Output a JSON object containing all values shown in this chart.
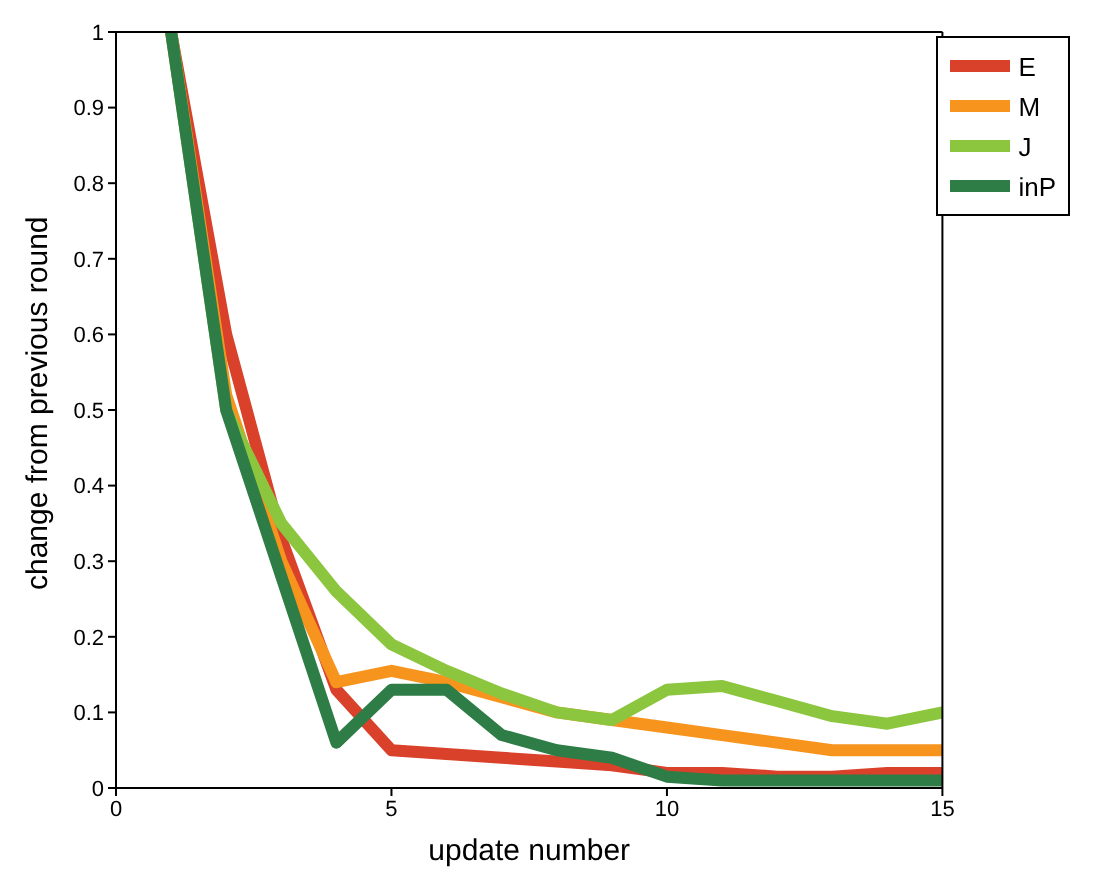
{
  "chart_data": {
    "type": "line",
    "xlabel": "update number",
    "ylabel": "change from previous round",
    "x": [
      1,
      2,
      3,
      4,
      5,
      6,
      7,
      8,
      9,
      10,
      11,
      12,
      13,
      14,
      15
    ],
    "series": [
      {
        "name": "E",
        "color": "#d9412b",
        "values": [
          1,
          0.6,
          0.33,
          0.13,
          0.05,
          0.045,
          0.04,
          0.035,
          0.03,
          0.02,
          0.02,
          0.015,
          0.015,
          0.02,
          0.02
        ]
      },
      {
        "name": "M",
        "color": "#f7941d",
        "values": [
          1,
          0.52,
          0.3,
          0.14,
          0.155,
          0.14,
          0.12,
          0.1,
          0.09,
          0.08,
          0.07,
          0.06,
          0.05,
          0.05,
          0.05
        ]
      },
      {
        "name": "J",
        "color": "#8cc63f",
        "values": [
          1,
          0.5,
          0.35,
          0.26,
          0.19,
          0.155,
          0.125,
          0.1,
          0.09,
          0.13,
          0.135,
          0.115,
          0.095,
          0.085,
          0.1
        ]
      },
      {
        "name": "inP",
        "color": "#2e7d46",
        "values": [
          1,
          0.5,
          0.28,
          0.06,
          0.13,
          0.13,
          0.07,
          0.05,
          0.04,
          0.015,
          0.01,
          0.01,
          0.01,
          0.01,
          0.01
        ]
      }
    ],
    "xlim": [
      0,
      15
    ],
    "xticks": [
      0,
      5,
      10,
      15
    ],
    "ylim": [
      0,
      1
    ],
    "yticks": [
      0,
      0.1,
      0.2,
      0.3,
      0.4,
      0.5,
      0.6,
      0.7,
      0.8,
      0.9,
      1
    ],
    "legend": "top right",
    "grid": false,
    "marker": "none",
    "line_style": "solid"
  }
}
